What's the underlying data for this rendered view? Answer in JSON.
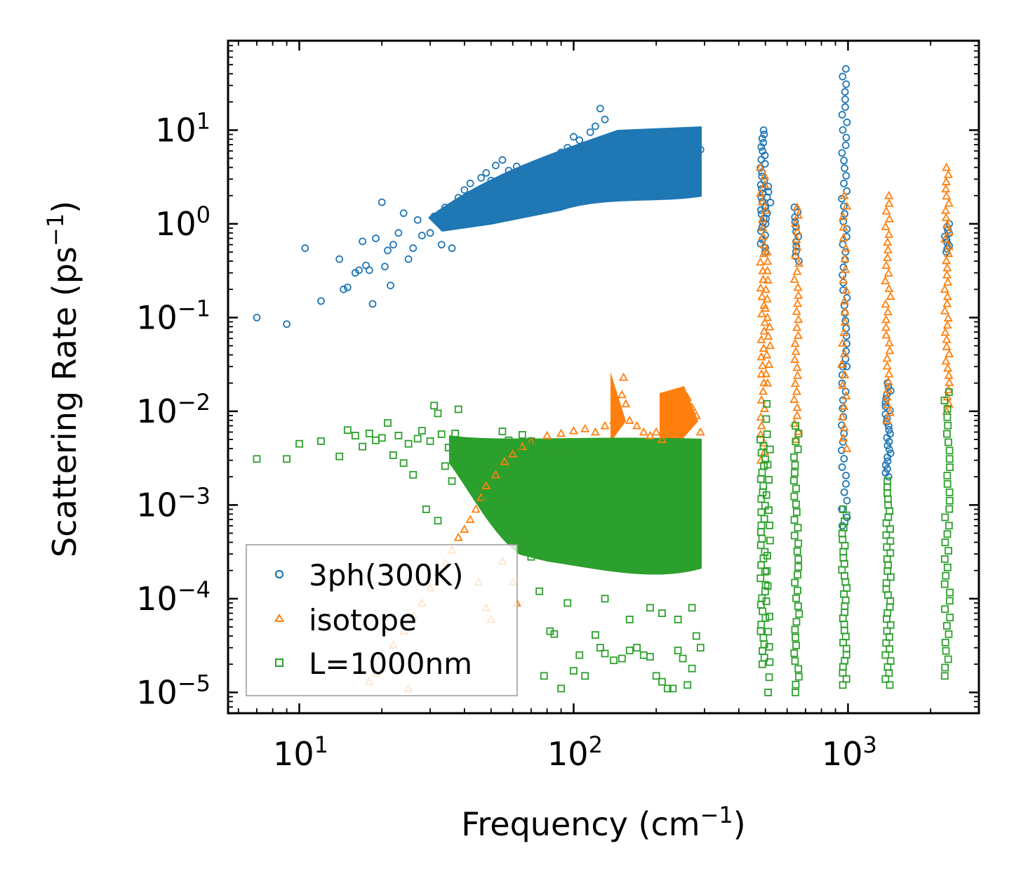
{
  "chart_data": {
    "type": "scatter",
    "title": "",
    "xlabel": "Frequency (cm",
    "xlabel_sup": "−1",
    "xlabel_end": ")",
    "ylabel": "Scattering Rate (ps",
    "ylabel_sup": "−1",
    "ylabel_end": ")",
    "xscale": "log",
    "yscale": "log",
    "xlim": [
      5.5,
      3000
    ],
    "ylim": [
      6e-06,
      90
    ],
    "xticks": [
      {
        "value": 10,
        "base": "10",
        "exp": "1"
      },
      {
        "value": 100,
        "base": "10",
        "exp": "2"
      },
      {
        "value": 1000,
        "base": "10",
        "exp": "3"
      }
    ],
    "yticks": [
      {
        "value": 10,
        "base": "10",
        "exp": "1"
      },
      {
        "value": 1,
        "base": "10",
        "exp": "0"
      },
      {
        "value": 0.1,
        "base": "10",
        "exp": "−1"
      },
      {
        "value": 0.01,
        "base": "10",
        "exp": "−2"
      },
      {
        "value": 0.001,
        "base": "10",
        "exp": "−3"
      },
      {
        "value": 0.0001,
        "base": "10",
        "exp": "−4"
      },
      {
        "value": 1e-05,
        "base": "10",
        "exp": "−5"
      }
    ],
    "legend_position": "lower-left",
    "series": [
      {
        "name": "3ph(300K)",
        "marker": "circle",
        "color": "#1f77b4",
        "points": [
          [
            7,
            0.1
          ],
          [
            9,
            0.085
          ],
          [
            10.5,
            0.55
          ],
          [
            12,
            0.15
          ],
          [
            14,
            0.42
          ],
          [
            14.5,
            0.2
          ],
          [
            15,
            0.21
          ],
          [
            16,
            0.3
          ],
          [
            16.5,
            0.32
          ],
          [
            17,
            0.65
          ],
          [
            17.5,
            0.36
          ],
          [
            18,
            0.32
          ],
          [
            18.5,
            0.14
          ],
          [
            19,
            0.7
          ],
          [
            20,
            1.7
          ],
          [
            20.5,
            0.35
          ],
          [
            21,
            0.52
          ],
          [
            21.5,
            0.22
          ],
          [
            22,
            0.6
          ],
          [
            23,
            0.8
          ],
          [
            24,
            1.3
          ],
          [
            25,
            0.42
          ],
          [
            26,
            0.55
          ],
          [
            27,
            1.1
          ],
          [
            28,
            0.75
          ],
          [
            30,
            0.8
          ],
          [
            31,
            1.2
          ],
          [
            32,
            1.05
          ],
          [
            33,
            0.6
          ],
          [
            34,
            1.5
          ],
          [
            36,
            0.55
          ],
          [
            38,
            1.9
          ],
          [
            40,
            2.3
          ],
          [
            42,
            2.7
          ],
          [
            44,
            2.2
          ],
          [
            46,
            3.1
          ],
          [
            48,
            3.5
          ],
          [
            50,
            2.9
          ],
          [
            52,
            4.2
          ],
          [
            55,
            4.8
          ],
          [
            58,
            3.7
          ],
          [
            62,
            4.1
          ],
          [
            66,
            3.9
          ],
          [
            70,
            3.8
          ],
          [
            75,
            4.3
          ],
          [
            80,
            4.1
          ],
          [
            85,
            4.9
          ],
          [
            90,
            5.8
          ],
          [
            95,
            6.5
          ],
          [
            100,
            8.5
          ],
          [
            105,
            7.8
          ],
          [
            110,
            6.9
          ],
          [
            115,
            9.5
          ],
          [
            120,
            11
          ],
          [
            125,
            17
          ],
          [
            130,
            13
          ],
          [
            140,
            8.2
          ],
          [
            150,
            7.6
          ],
          [
            160,
            9.1
          ],
          [
            170,
            8.4
          ],
          [
            180,
            6.5
          ],
          [
            190,
            6.9
          ],
          [
            200,
            7.3
          ],
          [
            210,
            6.1
          ],
          [
            220,
            5.6
          ],
          [
            230,
            5.9
          ],
          [
            240,
            5.2
          ],
          [
            250,
            6.4
          ],
          [
            260,
            7.1
          ],
          [
            270,
            6.6
          ],
          [
            280,
            7.8
          ],
          [
            290,
            6.2
          ]
        ],
        "bands": [
          {
            "x": 490,
            "ymin": 0.5,
            "ymax": 10,
            "n": 30
          },
          {
            "x": 510,
            "ymin": 1.0,
            "ymax": 2.5,
            "n": 8
          },
          {
            "x": 650,
            "ymin": 0.4,
            "ymax": 1.5,
            "n": 12
          },
          {
            "x": 970,
            "ymin": 0.03,
            "ymax": 45,
            "n": 40
          },
          {
            "x": 970,
            "ymin": 0.0006,
            "ymax": 0.03,
            "n": 20
          },
          {
            "x": 1400,
            "ymin": 0.002,
            "ymax": 0.02,
            "n": 25
          },
          {
            "x": 2300,
            "ymin": 0.5,
            "ymax": 1.0,
            "n": 10
          }
        ]
      },
      {
        "name": "isotope",
        "marker": "triangle",
        "color": "#ff7f0e",
        "points": [
          [
            18,
            1.3e-05
          ],
          [
            19,
            1.6e-05
          ],
          [
            20,
            2.5e-05
          ],
          [
            22,
            3.2e-05
          ],
          [
            24,
            4.5e-05
          ],
          [
            25,
            1.1e-05
          ],
          [
            26,
            6.5e-05
          ],
          [
            28,
            9e-05
          ],
          [
            30,
            0.00013
          ],
          [
            32,
            0.00019
          ],
          [
            34,
            0.00024
          ],
          [
            36,
            0.00033
          ],
          [
            38,
            0.00045
          ],
          [
            40,
            0.00055
          ],
          [
            42,
            0.0007
          ],
          [
            44,
            0.0009
          ],
          [
            46,
            0.0012
          ],
          [
            48,
            0.0016
          ],
          [
            52,
            0.0021
          ],
          [
            56,
            0.0029
          ],
          [
            60,
            0.0035
          ],
          [
            65,
            0.0042
          ],
          [
            70,
            0.0048
          ],
          [
            80,
            0.0055
          ],
          [
            90,
            0.0058
          ],
          [
            100,
            0.0062
          ],
          [
            110,
            0.0065
          ],
          [
            120,
            0.006
          ],
          [
            130,
            0.007
          ],
          [
            140,
            0.008
          ],
          [
            150,
            0.015
          ],
          [
            152,
            0.023
          ],
          [
            155,
            0.012
          ],
          [
            160,
            0.008
          ],
          [
            170,
            0.007
          ],
          [
            180,
            0.006
          ],
          [
            190,
            0.0055
          ],
          [
            200,
            0.006
          ],
          [
            210,
            0.005
          ],
          [
            220,
            0.0058
          ],
          [
            230,
            0.007
          ],
          [
            240,
            0.009
          ],
          [
            250,
            0.012
          ],
          [
            260,
            0.014
          ],
          [
            270,
            0.011
          ],
          [
            280,
            0.009
          ],
          [
            290,
            0.006
          ],
          [
            45,
            0.00015
          ],
          [
            48,
            8e-05
          ],
          [
            50,
            6e-05
          ],
          [
            55,
            0.00025
          ],
          [
            60,
            0.00015
          ],
          [
            62,
            9e-05
          ]
        ],
        "bands": [
          {
            "x": 490,
            "ymin": 0.003,
            "ymax": 4,
            "n": 35
          },
          {
            "x": 510,
            "ymin": 0.02,
            "ymax": 0.5,
            "n": 15
          },
          {
            "x": 650,
            "ymin": 0.005,
            "ymax": 1.5,
            "n": 30
          },
          {
            "x": 970,
            "ymin": 0.004,
            "ymax": 2,
            "n": 25
          },
          {
            "x": 1400,
            "ymin": 0.008,
            "ymax": 2,
            "n": 30
          },
          {
            "x": 2300,
            "ymin": 0.01,
            "ymax": 4,
            "n": 35
          }
        ]
      },
      {
        "name": "L=1000nm",
        "marker": "square",
        "color": "#2ca02c",
        "points": [
          [
            7,
            0.0031
          ],
          [
            9,
            0.0031
          ],
          [
            10,
            0.0045
          ],
          [
            12,
            0.0048
          ],
          [
            14,
            0.0033
          ],
          [
            15,
            0.0063
          ],
          [
            16,
            0.0055
          ],
          [
            17,
            0.0042
          ],
          [
            18,
            0.0058
          ],
          [
            19,
            0.0049
          ],
          [
            20,
            0.0052
          ],
          [
            21,
            0.0075
          ],
          [
            22,
            0.0034
          ],
          [
            23,
            0.0055
          ],
          [
            24,
            0.0028
          ],
          [
            25,
            0.0045
          ],
          [
            26,
            0.0021
          ],
          [
            27,
            0.0051
          ],
          [
            28,
            0.0062
          ],
          [
            30,
            0.0048
          ],
          [
            31,
            0.0115
          ],
          [
            32,
            0.0095
          ],
          [
            33,
            0.0057
          ],
          [
            34,
            0.0026
          ],
          [
            35,
            0.0041
          ],
          [
            36,
            0.0018
          ],
          [
            37,
            0.0058
          ],
          [
            38,
            0.0105
          ],
          [
            39,
            0.0036
          ],
          [
            40,
            0.0044
          ],
          [
            42,
            0.0023
          ],
          [
            44,
            0.0038
          ],
          [
            46,
            0.0041
          ],
          [
            48,
            0.0029
          ],
          [
            50,
            0.0037
          ],
          [
            52,
            0.0033
          ],
          [
            55,
            0.0061
          ],
          [
            58,
            0.0049
          ],
          [
            60,
            0.0027
          ],
          [
            62,
            0.0041
          ],
          [
            65,
            0.0056
          ],
          [
            70,
            0.0048
          ],
          [
            75,
            0.0033
          ],
          [
            80,
            0.0044
          ],
          [
            90,
            0.0037
          ],
          [
            100,
            0.0043
          ],
          [
            110,
            0.0028
          ],
          [
            120,
            0.0047
          ],
          [
            130,
            0.0039
          ],
          [
            140,
            0.0045
          ],
          [
            160,
            0.0041
          ],
          [
            180,
            0.0033
          ],
          [
            200,
            0.0038
          ],
          [
            220,
            0.0036
          ],
          [
            250,
            0.0042
          ],
          [
            280,
            0.0035
          ],
          [
            29,
            0.0009
          ],
          [
            32,
            0.00068
          ],
          [
            45,
            0.0017
          ],
          [
            48,
            0.0012
          ],
          [
            50,
            0.0009
          ],
          [
            55,
            0.0011
          ],
          [
            58,
            0.0008
          ],
          [
            62,
            0.00072
          ],
          [
            68,
            0.00045
          ],
          [
            70,
            0.00028
          ],
          [
            75,
            0.00012
          ],
          [
            78,
            1.5e-05
          ],
          [
            82,
            4.5e-05
          ],
          [
            85,
            4.2e-05
          ],
          [
            90,
            1.1e-05
          ],
          [
            95,
            9e-05
          ],
          [
            100,
            1.7e-05
          ],
          [
            105,
            2.5e-05
          ],
          [
            110,
            1.5e-05
          ],
          [
            120,
            4.1e-05
          ],
          [
            125,
            3e-05
          ],
          [
            130,
            2.6e-05
          ],
          [
            140,
            2.2e-05
          ],
          [
            150,
            2.3e-05
          ],
          [
            160,
            2.8e-05
          ],
          [
            170,
            3e-05
          ],
          [
            180,
            2.5e-05
          ],
          [
            190,
            2.4e-05
          ],
          [
            200,
            1.5e-05
          ],
          [
            210,
            1.3e-05
          ],
          [
            220,
            1.1e-05
          ],
          [
            230,
            1.1e-05
          ],
          [
            240,
            2.8e-05
          ],
          [
            250,
            2.3e-05
          ],
          [
            260,
            1.2e-05
          ],
          [
            270,
            1.8e-05
          ],
          [
            280,
            4e-05
          ],
          [
            290,
            3e-05
          ],
          [
            130,
            0.0001
          ],
          [
            160,
            6e-05
          ],
          [
            190,
            8e-05
          ],
          [
            210,
            7e-05
          ],
          [
            240,
            6e-05
          ],
          [
            270,
            8e-05
          ]
        ],
        "bands": [
          {
            "x": 490,
            "ymin": 2e-05,
            "ymax": 0.005,
            "n": 35
          },
          {
            "x": 510,
            "ymin": 1e-05,
            "ymax": 0.012,
            "n": 20
          },
          {
            "x": 650,
            "ymin": 1e-05,
            "ymax": 0.007,
            "n": 35
          },
          {
            "x": 970,
            "ymin": 1.2e-05,
            "ymax": 0.0009,
            "n": 30
          },
          {
            "x": 1400,
            "ymin": 1.2e-05,
            "ymax": 0.0018,
            "n": 35
          },
          {
            "x": 2300,
            "ymin": 1.5e-05,
            "ymax": 0.016,
            "n": 35
          }
        ]
      }
    ]
  }
}
